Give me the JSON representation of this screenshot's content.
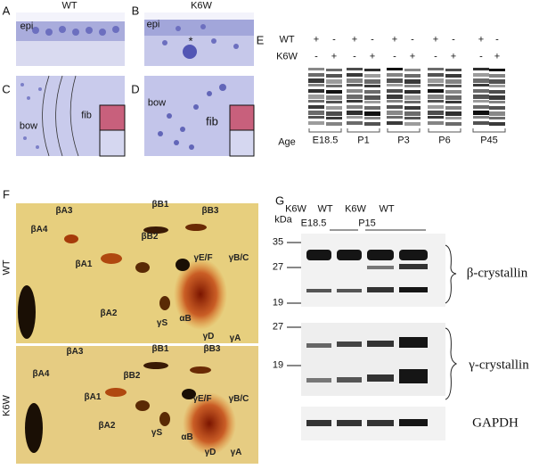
{
  "panels": {
    "A": {
      "letter": "A",
      "title": "WT",
      "labels": [
        "epi"
      ]
    },
    "B": {
      "letter": "B",
      "title": "K6W",
      "labels": [
        "epi",
        "*"
      ]
    },
    "C": {
      "letter": "C",
      "labels": [
        "bow",
        "fib"
      ]
    },
    "D": {
      "letter": "D",
      "labels": [
        "bow",
        "fib"
      ]
    },
    "E": {
      "letter": "E",
      "rows": [
        {
          "label": "WT",
          "signs": [
            "+",
            "-",
            "+",
            "-",
            "+",
            "-",
            "+",
            "-",
            "+",
            "-"
          ]
        },
        {
          "label": "K6W",
          "signs": [
            "-",
            "+",
            "-",
            "+",
            "-",
            "+",
            "-",
            "+",
            "-",
            "+"
          ]
        }
      ],
      "age_label": "Age",
      "ages": [
        "E18.5",
        "P1",
        "P3",
        "P6",
        "P45"
      ]
    },
    "F": {
      "letter": "F",
      "gels": [
        {
          "label": "WT",
          "spots": [
            "βA3",
            "βB1",
            "βB3",
            "βA4",
            "βB2",
            "γE/F",
            "γB/C",
            "βA1",
            "γS",
            "αB",
            "βA2",
            "γD",
            "γA"
          ]
        },
        {
          "label": "K6W",
          "spots": [
            "βA3",
            "βB1",
            "βB3",
            "βA4",
            "βB2",
            "γE/F",
            "γB/C",
            "βA1",
            "γS",
            "αB",
            "βA2",
            "γD",
            "γA"
          ]
        }
      ]
    },
    "G": {
      "letter": "G",
      "lanes": [
        "K6W",
        "WT",
        "K6W",
        "WT"
      ],
      "unit": "kDa",
      "groups": [
        "E18.5",
        "P15"
      ],
      "blots": [
        {
          "markers": [
            35,
            27,
            19
          ],
          "label": "β-crystallin"
        },
        {
          "markers": [
            27,
            19
          ],
          "label": "γ-crystallin"
        },
        {
          "label": "GAPDH"
        }
      ]
    }
  }
}
